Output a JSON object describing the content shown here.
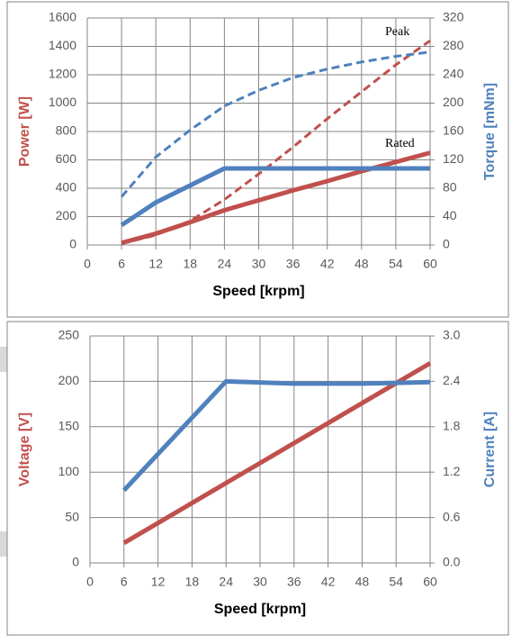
{
  "chart_data": [
    {
      "type": "line",
      "x_label": "Speed [krpm]",
      "y_label": "Power [W]",
      "y2_label": "Torque [mNm]",
      "x": [
        6,
        12,
        18,
        24,
        30,
        36,
        42,
        48,
        54,
        60
      ],
      "xlim": [
        0,
        60
      ],
      "xticks": [
        0,
        6,
        12,
        18,
        24,
        30,
        36,
        42,
        48,
        54,
        60
      ],
      "ylim": [
        0,
        1600
      ],
      "yticks": [
        0,
        200,
        400,
        600,
        800,
        1000,
        1200,
        1400,
        1600
      ],
      "y2lim": [
        0,
        320
      ],
      "y2ticks": [
        0,
        40,
        80,
        120,
        160,
        200,
        240,
        280,
        320
      ],
      "grid": true,
      "y_color": "#c0504d",
      "y2_color": "#4f81bd",
      "series": [
        {
          "color": "#c0504d",
          "dashed": false,
          "values": [
            15,
            80,
            160,
            245,
            315,
            385,
            450,
            520,
            585,
            650
          ]
        },
        {
          "color": "#c0504d",
          "dashed": true,
          "values": [
            10,
            70,
            170,
            320,
            500,
            690,
            890,
            1080,
            1270,
            1440
          ]
        },
        {
          "color": "#4f81bd",
          "dashed": false,
          "axis": "y2",
          "values": [
            28,
            60,
            84,
            108,
            108,
            108,
            108,
            108,
            108,
            108
          ]
        },
        {
          "color": "#4f81bd",
          "dashed": true,
          "axis": "y2",
          "values": [
            68,
            124,
            162,
            196,
            218,
            236,
            248,
            258,
            266,
            272
          ]
        }
      ],
      "annotations": [
        "Peak",
        "Rated"
      ]
    },
    {
      "type": "line",
      "x_label": "Speed [krpm]",
      "y_label": "Voltage [V]",
      "y2_label": "Current [A]",
      "x": [
        6,
        24,
        36,
        48,
        54,
        60
      ],
      "xlim": [
        0,
        60
      ],
      "xticks": [
        0,
        6,
        12,
        18,
        24,
        30,
        36,
        42,
        48,
        54,
        60
      ],
      "ylim": [
        0,
        250
      ],
      "yticks": [
        0,
        50,
        100,
        150,
        200,
        250
      ],
      "y2lim": [
        0,
        3
      ],
      "y2ticks": [
        {
          "value": 0,
          "label": "0.0"
        },
        0.6,
        1.2,
        1.8,
        2.4,
        {
          "value": 3,
          "label": "3.0"
        }
      ],
      "grid": true,
      "y_color": "#c0504d",
      "y2_color": "#4f81bd",
      "series": [
        {
          "color": "#c0504d",
          "dashed": false,
          "values": [
            22,
            88,
            132,
            176,
            198,
            220
          ]
        },
        {
          "color": "#4f81bd",
          "dashed": false,
          "axis": "y2",
          "values": [
            0.96,
            2.4,
            2.37,
            2.37,
            2.38,
            2.39
          ]
        }
      ]
    }
  ]
}
